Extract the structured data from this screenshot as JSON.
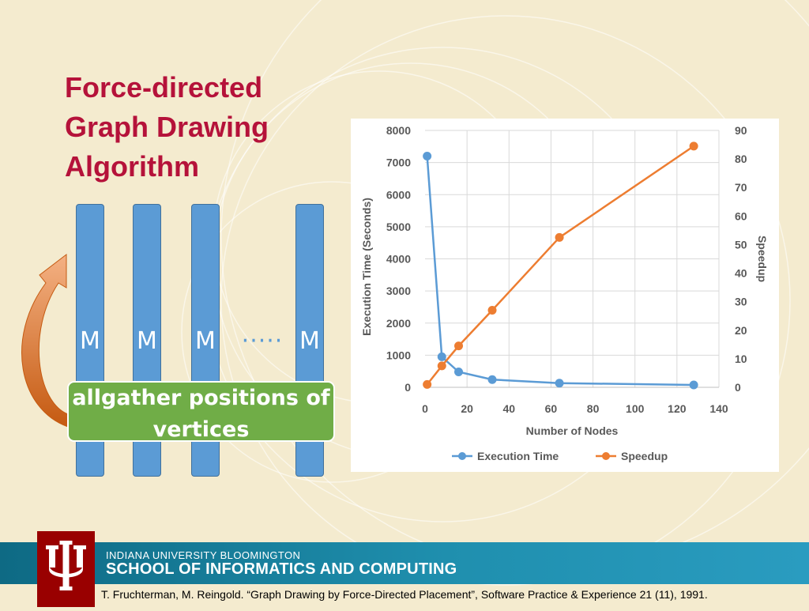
{
  "slide": {
    "title_lines": [
      "Force-directed",
      "Graph Drawing",
      "Algorithm"
    ],
    "m_labels": [
      "M",
      "M",
      "M",
      "M"
    ],
    "ellipsis": "·····",
    "allgather_lines": [
      "allgather positions of",
      "vertices"
    ],
    "colors": {
      "title": "#b5123a",
      "bar": "#5b9bd5",
      "green_box": "#70ad47",
      "arrow": "#ed7d31"
    }
  },
  "chart_data": {
    "type": "line",
    "xlabel": "Number of Nodes",
    "ylabel": "Execution Time (Seconds)",
    "y2label": "Speedup",
    "xlim": [
      0,
      140
    ],
    "ylim": [
      0,
      8000
    ],
    "y2lim": [
      0,
      90
    ],
    "x_ticks": [
      0,
      20,
      40,
      60,
      80,
      100,
      120,
      140
    ],
    "y_ticks": [
      0,
      1000,
      2000,
      3000,
      4000,
      5000,
      6000,
      7000,
      8000
    ],
    "y2_ticks": [
      0,
      10,
      20,
      30,
      40,
      50,
      60,
      70,
      80,
      90
    ],
    "grid": true,
    "legend_position": "bottom",
    "series": [
      {
        "name": "Execution Time",
        "axis": "left",
        "color": "#5b9bd5",
        "x": [
          1,
          8,
          16,
          32,
          64,
          128
        ],
        "values": [
          7200,
          950,
          480,
          240,
          130,
          75
        ]
      },
      {
        "name": "Speedup",
        "axis": "right",
        "color": "#ed7d31",
        "x": [
          1,
          8,
          16,
          32,
          64,
          128
        ],
        "values": [
          1,
          7.5,
          14.5,
          27,
          52.5,
          84.5
        ]
      }
    ]
  },
  "footer": {
    "university": "INDIANA UNIVERSITY BLOOMINGTON",
    "school": "SCHOOL OF INFORMATICS AND COMPUTING",
    "citation": "T. Fruchterman, M. Reingold. “Graph Drawing by Force-Directed Placement”, Software Practice & Experience 21 (11), 1991."
  }
}
